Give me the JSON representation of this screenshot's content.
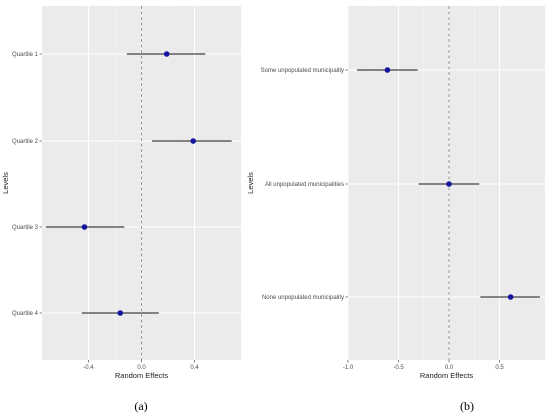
{
  "chart_data": [
    {
      "type": "scatter",
      "subtype": "forest-plot",
      "caption": "(a)",
      "xlabel": "Random Effects",
      "ylabel": "Levels",
      "xlim": [
        -0.75,
        0.75
      ],
      "xticks": [
        -0.4,
        0.0,
        0.4
      ],
      "xtick_labels": [
        "-0.4",
        "0.0",
        "0.4"
      ],
      "reference_line": 0,
      "grid": true,
      "categories": [
        "Quartile 1",
        "Quartile 2",
        "Quartile 3",
        "Quartile 4"
      ],
      "estimates": [
        0.19,
        0.39,
        -0.43,
        -0.16
      ],
      "lower": [
        -0.11,
        0.08,
        -0.72,
        -0.45
      ],
      "upper": [
        0.48,
        0.68,
        -0.13,
        0.13
      ],
      "point_color": "#1414a0",
      "background": "#ebebeb"
    },
    {
      "type": "scatter",
      "subtype": "forest-plot",
      "caption": "(b)",
      "xlabel": "Random Effects",
      "ylabel": "Levels",
      "xlim": [
        -1.0,
        0.95
      ],
      "xticks": [
        -1.0,
        -0.5,
        0.0,
        0.5
      ],
      "xtick_labels": [
        "-1.0",
        "-0.5",
        "0.0",
        "0.5"
      ],
      "reference_line": 0,
      "grid": true,
      "categories": [
        "Some unpopulated municipality",
        "All unpopulated municipalities",
        "None unpopulated municipality"
      ],
      "estimates": [
        -0.61,
        0.0,
        0.61
      ],
      "lower": [
        -0.91,
        -0.3,
        0.31
      ],
      "upper": [
        -0.31,
        0.3,
        0.9
      ],
      "point_color": "#1414a0",
      "background": "#ebebeb"
    }
  ]
}
